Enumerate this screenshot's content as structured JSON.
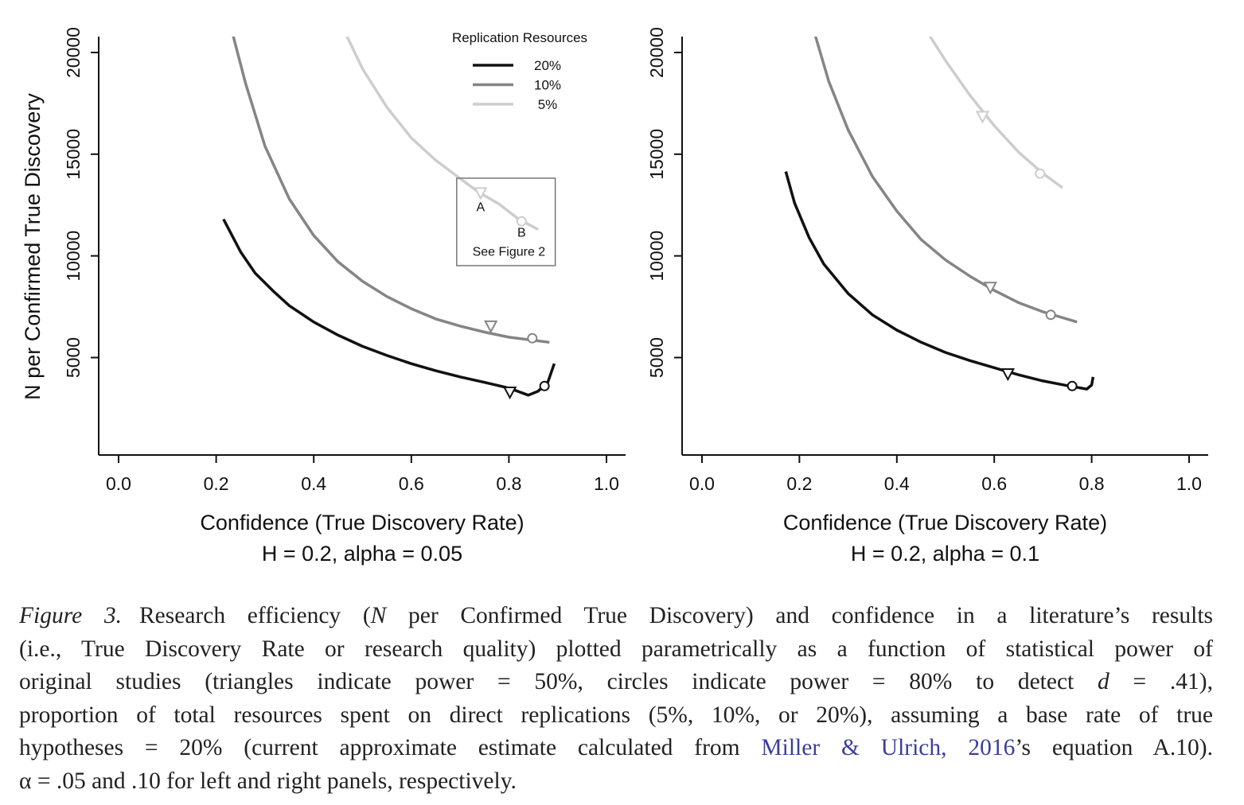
{
  "chart_data": [
    {
      "type": "line",
      "title": "H = 0.2, alpha = 0.05",
      "xlabel": "Confidence (True Discovery Rate)",
      "ylabel": "N per Confirmed True Discovery",
      "xlim": [
        0.0,
        1.0
      ],
      "ylim": [
        0,
        20000
      ],
      "x_ticks": [
        "0.0",
        "0.2",
        "0.4",
        "0.6",
        "0.8",
        "1.0"
      ],
      "y_ticks": [
        "5000",
        "10000",
        "15000",
        "20000"
      ],
      "legend": {
        "title": "Replication Resources",
        "position": "top-right",
        "entries": [
          "20%",
          "10%",
          "5%"
        ]
      },
      "series": [
        {
          "name": "20%",
          "color": "#111111",
          "points": [
            [
              0.215,
              11800
            ],
            [
              0.25,
              10200
            ],
            [
              0.28,
              9150
            ],
            [
              0.32,
              8200
            ],
            [
              0.35,
              7550
            ],
            [
              0.4,
              6750
            ],
            [
              0.45,
              6100
            ],
            [
              0.5,
              5550
            ],
            [
              0.55,
              5100
            ],
            [
              0.6,
              4700
            ],
            [
              0.65,
              4350
            ],
            [
              0.7,
              4050
            ],
            [
              0.75,
              3780
            ],
            [
              0.8,
              3500
            ],
            [
              0.84,
              3150
            ],
            [
              0.86,
              3350
            ],
            [
              0.88,
              3800
            ],
            [
              0.893,
              4700
            ]
          ],
          "markers": [
            {
              "shape": "triangle",
              "x": 0.802,
              "y": 3300
            },
            {
              "shape": "circle",
              "x": 0.873,
              "y": 3600
            }
          ]
        },
        {
          "name": "10%",
          "color": "#858585",
          "points": [
            [
              0.235,
              20800
            ],
            [
              0.26,
              18500
            ],
            [
              0.3,
              15400
            ],
            [
              0.35,
              12800
            ],
            [
              0.4,
              11000
            ],
            [
              0.45,
              9700
            ],
            [
              0.5,
              8750
            ],
            [
              0.55,
              8000
            ],
            [
              0.6,
              7400
            ],
            [
              0.65,
              6900
            ],
            [
              0.7,
              6550
            ],
            [
              0.75,
              6250
            ],
            [
              0.8,
              6000
            ],
            [
              0.85,
              5850
            ],
            [
              0.883,
              5750
            ]
          ],
          "markers": [
            {
              "shape": "triangle",
              "x": 0.763,
              "y": 6550
            },
            {
              "shape": "circle",
              "x": 0.848,
              "y": 5950
            }
          ]
        },
        {
          "name": "5%",
          "color": "#cdcdcd",
          "points": [
            [
              0.468,
              20800
            ],
            [
              0.5,
              19200
            ],
            [
              0.55,
              17300
            ],
            [
              0.6,
              15800
            ],
            [
              0.65,
              14700
            ],
            [
              0.7,
              13800
            ],
            [
              0.74,
              13100
            ],
            [
              0.78,
              12550
            ],
            [
              0.82,
              11800
            ],
            [
              0.86,
              11300
            ]
          ],
          "markers": [
            {
              "shape": "triangle",
              "x": 0.742,
              "y": 13100
            },
            {
              "shape": "circle",
              "x": 0.826,
              "y": 11700
            }
          ]
        }
      ],
      "annotations": [
        {
          "text": "A",
          "x": 0.742,
          "y": 12200
        },
        {
          "text": "B",
          "x": 0.826,
          "y": 10950
        },
        {
          "text": "See Figure 2",
          "x": 0.8,
          "y": 10000
        }
      ],
      "inset_box": {
        "x": [
          0.693,
          0.895
        ],
        "y": [
          9520,
          13820
        ]
      }
    },
    {
      "type": "line",
      "title": "H = 0.2, alpha = 0.1",
      "xlabel": "Confidence (True Discovery Rate)",
      "ylabel": "",
      "xlim": [
        0.0,
        1.0
      ],
      "ylim": [
        0,
        20000
      ],
      "x_ticks": [
        "0.0",
        "0.2",
        "0.4",
        "0.6",
        "0.8",
        "1.0"
      ],
      "y_ticks": [
        "5000",
        "10000",
        "15000",
        "20000"
      ],
      "series": [
        {
          "name": "20%",
          "color": "#111111",
          "points": [
            [
              0.172,
              14150
            ],
            [
              0.19,
              12600
            ],
            [
              0.22,
              10900
            ],
            [
              0.25,
              9600
            ],
            [
              0.3,
              8150
            ],
            [
              0.35,
              7100
            ],
            [
              0.4,
              6350
            ],
            [
              0.45,
              5750
            ],
            [
              0.5,
              5250
            ],
            [
              0.55,
              4850
            ],
            [
              0.6,
              4500
            ],
            [
              0.65,
              4150
            ],
            [
              0.7,
              3850
            ],
            [
              0.75,
              3620
            ],
            [
              0.79,
              3450
            ],
            [
              0.8,
              3650
            ],
            [
              0.803,
              4050
            ]
          ],
          "markers": [
            {
              "shape": "triangle",
              "x": 0.628,
              "y": 4200
            },
            {
              "shape": "circle",
              "x": 0.76,
              "y": 3600
            }
          ]
        },
        {
          "name": "10%",
          "color": "#858585",
          "points": [
            [
              0.233,
              20800
            ],
            [
              0.26,
              18600
            ],
            [
              0.3,
              16200
            ],
            [
              0.35,
              13900
            ],
            [
              0.4,
              12200
            ],
            [
              0.45,
              10800
            ],
            [
              0.5,
              9800
            ],
            [
              0.55,
              9000
            ],
            [
              0.6,
              8300
            ],
            [
              0.65,
              7700
            ],
            [
              0.7,
              7250
            ],
            [
              0.77,
              6750
            ]
          ],
          "markers": [
            {
              "shape": "triangle",
              "x": 0.592,
              "y": 8450
            },
            {
              "shape": "circle",
              "x": 0.716,
              "y": 7100
            }
          ]
        },
        {
          "name": "5%",
          "color": "#cdcdcd",
          "points": [
            [
              0.468,
              20800
            ],
            [
              0.5,
              19600
            ],
            [
              0.55,
              17900
            ],
            [
              0.6,
              16400
            ],
            [
              0.65,
              15100
            ],
            [
              0.7,
              14050
            ],
            [
              0.74,
              13350
            ]
          ],
          "markers": [
            {
              "shape": "triangle",
              "x": 0.576,
              "y": 16850
            },
            {
              "shape": "circle",
              "x": 0.694,
              "y": 14050
            }
          ]
        }
      ]
    }
  ],
  "caption": {
    "label": "Figure 3.",
    "lines": [
      {
        "segments": [
          {
            "text": "Research efficiency (",
            "style": "normal"
          },
          {
            "text": "N",
            "style": "italic"
          },
          {
            "text": " per Confirmed True Discovery) and confidence in a literature’s results",
            "style": "normal"
          }
        ]
      },
      {
        "segments": [
          {
            "text": "(i.e., True Discovery Rate or research quality) plotted parametrically as a function of statistical power of",
            "style": "normal"
          }
        ]
      },
      {
        "segments": [
          {
            "text": "original studies (triangles indicate power = 50%, circles indicate power = 80% to detect ",
            "style": "normal"
          },
          {
            "text": "d",
            "style": "italic"
          },
          {
            "text": " = .41),",
            "style": "normal"
          }
        ]
      },
      {
        "segments": [
          {
            "text": "proportion of total resources spent on direct replications (5%, 10%, or 20%), assuming a base rate of true",
            "style": "normal"
          }
        ]
      },
      {
        "segments": [
          {
            "text": "hypotheses = 20% (current approximate estimate calculated from ",
            "style": "normal"
          },
          {
            "text": "Miller & Ulrich, 2016",
            "style": "link"
          },
          {
            "text": "’s equation A.10).",
            "style": "normal"
          }
        ]
      },
      {
        "segments": [
          {
            "text": "α = .05 and .10 for left and right panels, respectively.",
            "style": "normal"
          }
        ]
      }
    ]
  }
}
